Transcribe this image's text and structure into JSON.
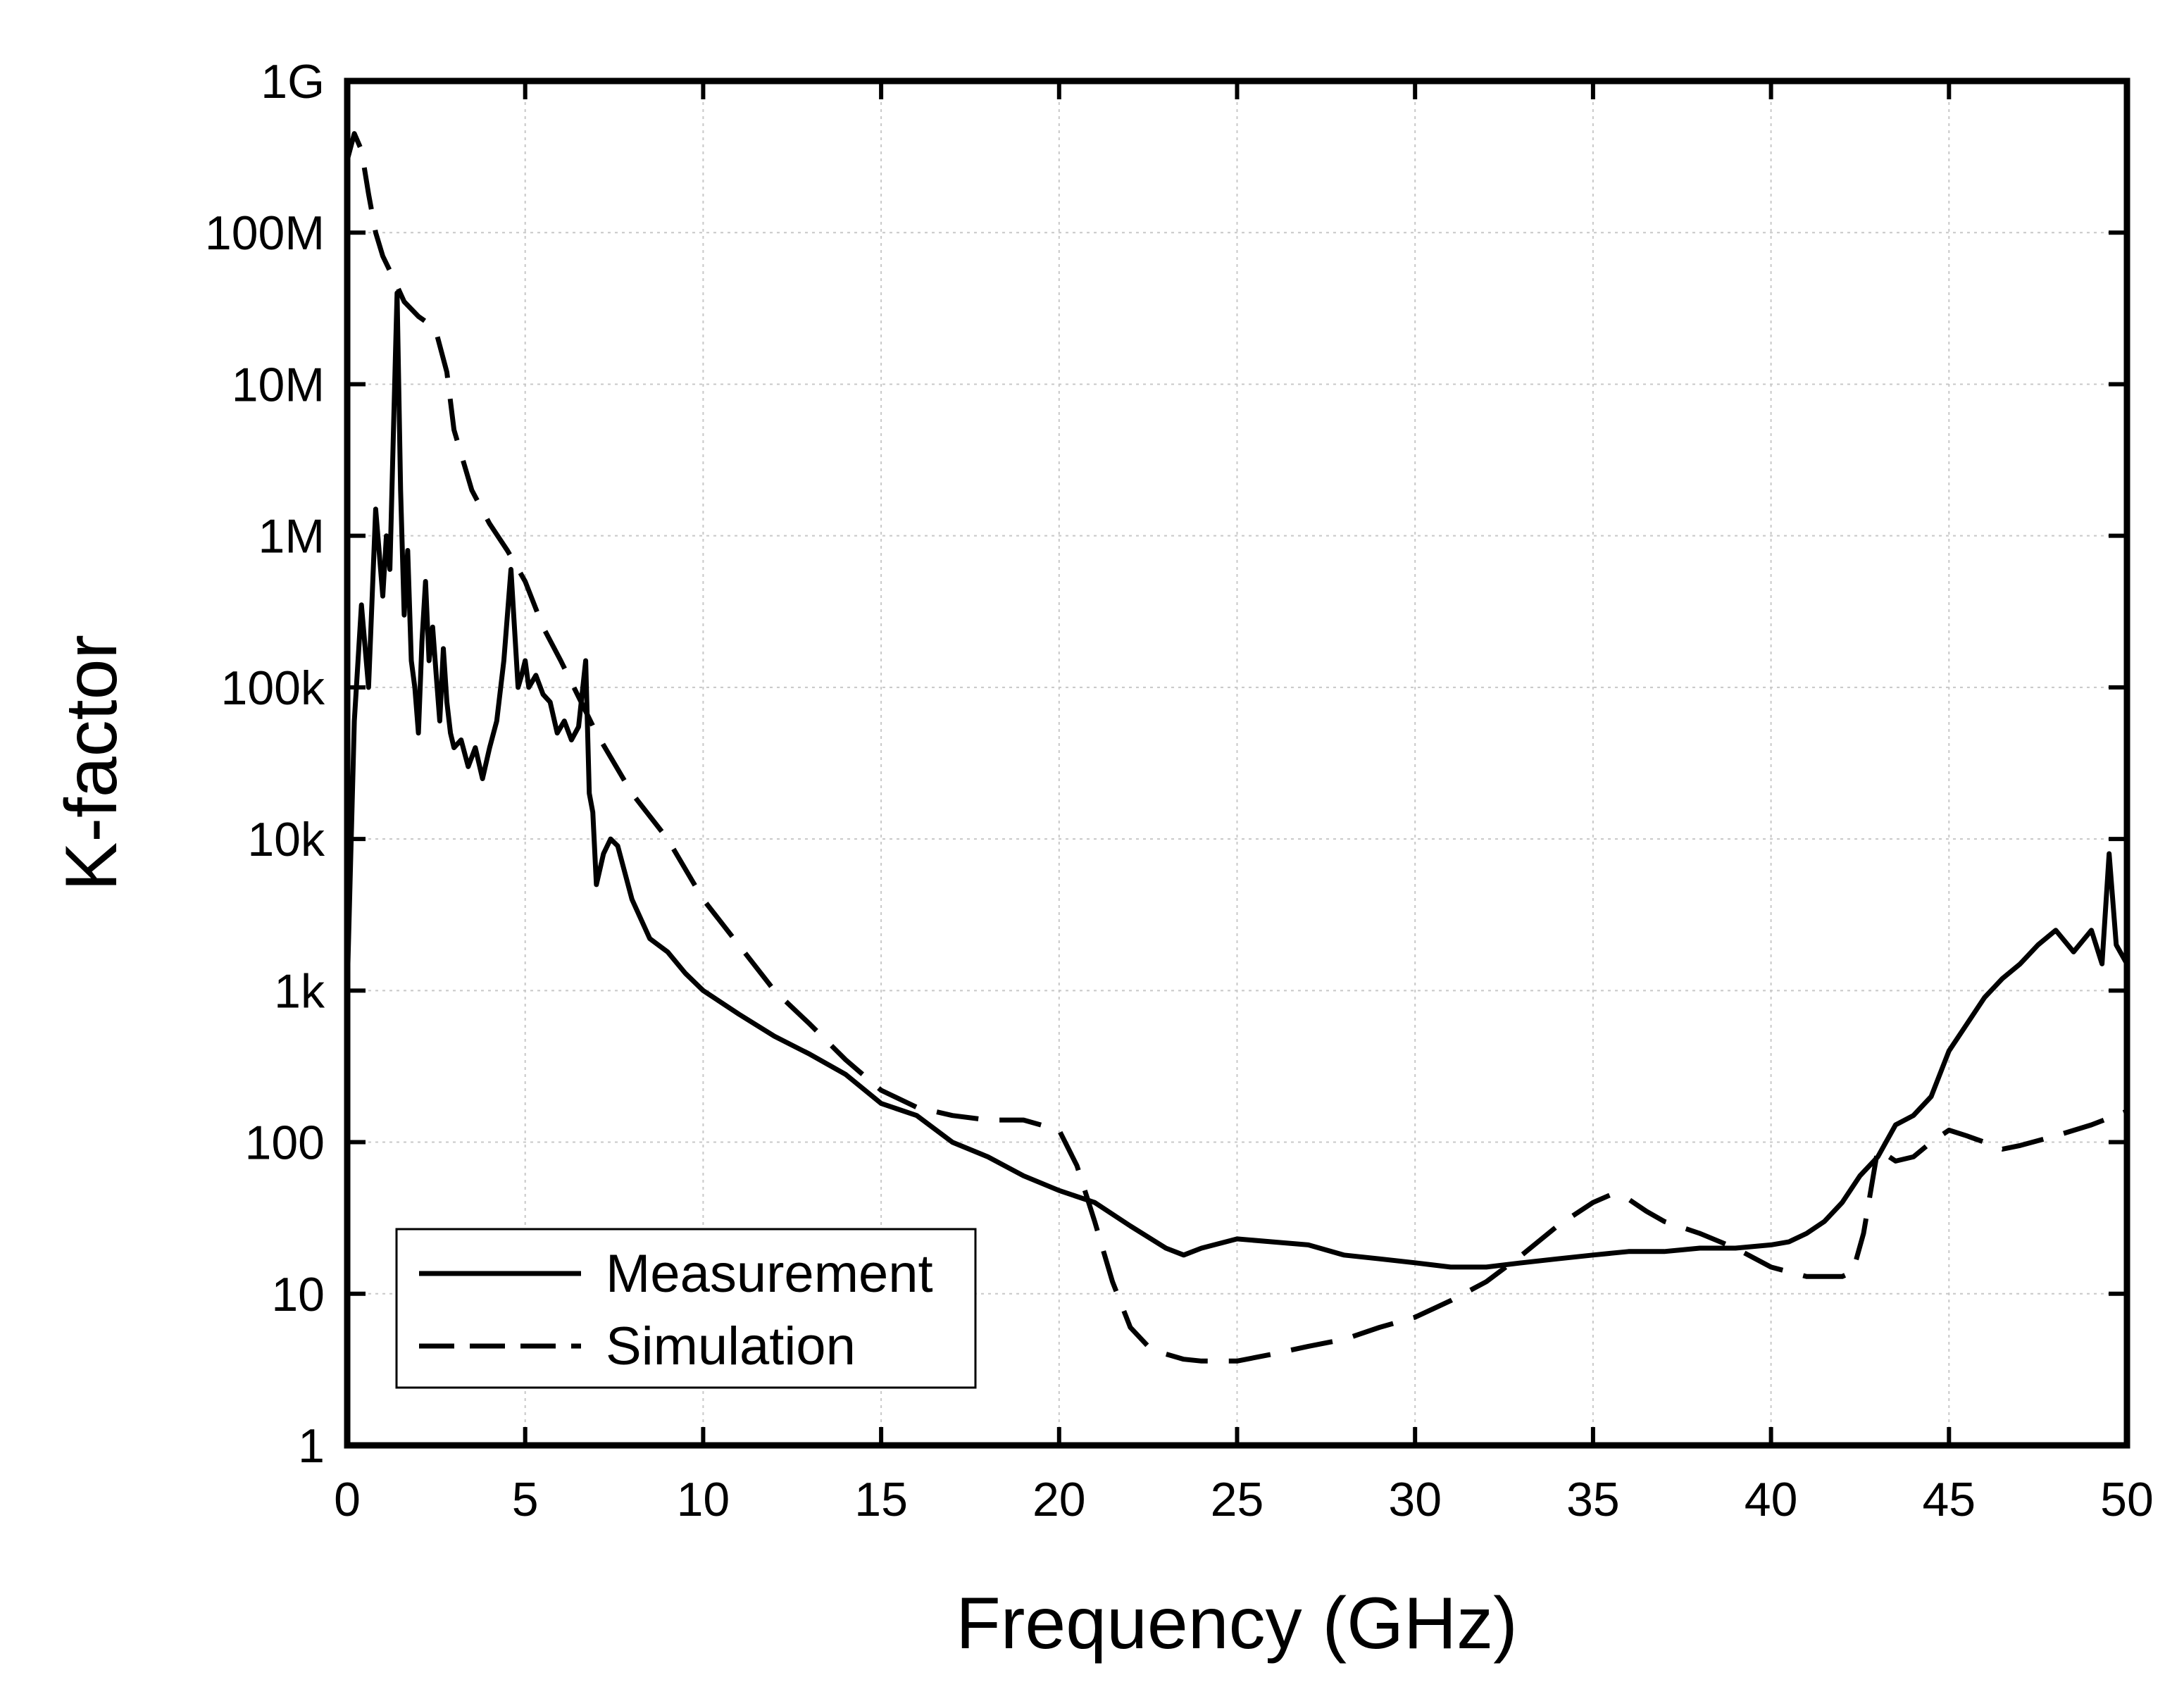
{
  "chart_data": {
    "type": "line",
    "title": "",
    "xlabel": "Frequency (GHz)",
    "ylabel": "K-factor",
    "xlim": [
      0,
      50
    ],
    "ylim": [
      1,
      1000000000
    ],
    "yscale": "log",
    "grid": true,
    "x_ticks": [
      0,
      5,
      10,
      15,
      20,
      25,
      30,
      35,
      40,
      45,
      50
    ],
    "x_tick_labels": [
      "0",
      "5",
      "10",
      "15",
      "20",
      "25",
      "30",
      "35",
      "40",
      "45",
      "50"
    ],
    "y_ticks": [
      1,
      10,
      100,
      1000,
      10000,
      100000,
      1000000,
      10000000,
      100000000,
      1000000000
    ],
    "y_tick_labels": [
      "1",
      "10",
      "100",
      "1k",
      "10k",
      "100k",
      "1M",
      "10M",
      "100M",
      "1G"
    ],
    "legend": {
      "position": "bottom-left",
      "entries": [
        "Measurement",
        "Simulation"
      ]
    },
    "series": [
      {
        "name": "Measurement",
        "style": "solid",
        "x": [
          0.0,
          0.2,
          0.4,
          0.6,
          0.8,
          1.0,
          1.1,
          1.2,
          1.3,
          1.4,
          1.5,
          1.6,
          1.7,
          1.8,
          1.9,
          2.0,
          2.1,
          2.2,
          2.3,
          2.4,
          2.5,
          2.6,
          2.7,
          2.8,
          2.9,
          3.0,
          3.2,
          3.4,
          3.6,
          3.8,
          4.0,
          4.2,
          4.4,
          4.6,
          4.8,
          4.9,
          5.0,
          5.1,
          5.3,
          5.5,
          5.7,
          5.9,
          6.1,
          6.3,
          6.5,
          6.7,
          6.8,
          6.9,
          7.0,
          7.2,
          7.4,
          7.6,
          7.8,
          8.0,
          8.5,
          9.0,
          9.5,
          10.0,
          11.0,
          12.0,
          13.0,
          14.0,
          15.0,
          16.0,
          17.0,
          18.0,
          19.0,
          20.0,
          21.0,
          22.0,
          23.0,
          23.5,
          24.0,
          25.0,
          26.0,
          27.0,
          28.0,
          29.0,
          30.0,
          31.0,
          32.0,
          33.0,
          34.0,
          35.0,
          36.0,
          37.0,
          38.0,
          39.0,
          40.0,
          40.5,
          41.0,
          41.5,
          42.0,
          42.5,
          43.0,
          43.5,
          44.0,
          44.5,
          45.0,
          45.5,
          46.0,
          46.5,
          47.0,
          47.5,
          48.0,
          48.5,
          49.0,
          49.3,
          49.5,
          49.7,
          50.0
        ],
        "values": [
          1000,
          60000,
          350000,
          100000,
          1500000,
          400000,
          1000000,
          600000,
          5000000,
          40000000,
          2000000,
          300000,
          800000,
          150000,
          100000,
          50000,
          200000,
          500000,
          150000,
          250000,
          120000,
          60000,
          180000,
          80000,
          50000,
          40000,
          45000,
          30000,
          40000,
          25000,
          40000,
          60000,
          150000,
          600000,
          100000,
          120000,
          150000,
          100000,
          120000,
          90000,
          80000,
          50000,
          60000,
          45000,
          55000,
          150000,
          20000,
          15000,
          5000,
          8000,
          10000,
          9000,
          6000,
          4000,
          2200,
          1800,
          1300,
          1000,
          700,
          500,
          380,
          280,
          180,
          150,
          100,
          80,
          60,
          48,
          40,
          28,
          20,
          18,
          20,
          23,
          22,
          21,
          18,
          17,
          16,
          15,
          15,
          16,
          17,
          18,
          19,
          19,
          20,
          20,
          21,
          22,
          25,
          30,
          40,
          60,
          80,
          130,
          150,
          200,
          400,
          600,
          900,
          1200,
          1500,
          2000,
          2500,
          1800,
          2500,
          1500,
          8000,
          2000,
          1500
        ]
      },
      {
        "name": "Simulation",
        "style": "dashed",
        "x": [
          0.0,
          0.2,
          0.4,
          0.6,
          0.8,
          1.0,
          1.3,
          1.6,
          2.0,
          2.3,
          2.5,
          2.8,
          3.0,
          3.5,
          4.0,
          4.5,
          5.0,
          5.5,
          6.0,
          7.0,
          8.0,
          9.0,
          10.0,
          11.0,
          12.0,
          13.0,
          14.0,
          15.0,
          16.0,
          17.0,
          18.0,
          19.0,
          20.0,
          20.5,
          21.0,
          21.5,
          22.0,
          22.5,
          23.0,
          23.5,
          24.0,
          25.0,
          26.0,
          27.0,
          28.0,
          29.0,
          30.0,
          31.0,
          32.0,
          33.0,
          34.0,
          35.0,
          35.5,
          36.0,
          36.5,
          37.0,
          38.0,
          39.0,
          40.0,
          41.0,
          42.0,
          42.3,
          42.6,
          43.0,
          43.5,
          44.0,
          44.5,
          45.0,
          45.5,
          46.0,
          46.5,
          47.0,
          48.0,
          49.0,
          50.0
        ],
        "values": [
          300000000,
          450000000,
          350000000,
          180000000,
          100000000,
          70000000,
          50000000,
          35000000,
          28000000,
          25000000,
          22000000,
          12000000,
          5000000,
          2000000,
          1200000,
          800000,
          500000,
          250000,
          150000,
          50000,
          20000,
          10000,
          4000,
          2000,
          1000,
          600,
          350,
          220,
          170,
          150,
          140,
          140,
          120,
          70,
          30,
          12,
          6,
          4.5,
          4,
          3.7,
          3.6,
          3.6,
          4,
          4.5,
          5,
          6,
          7,
          9,
          12,
          18,
          28,
          40,
          45,
          42,
          35,
          30,
          25,
          20,
          15,
          13,
          13,
          14,
          25,
          90,
          75,
          80,
          100,
          120,
          110,
          100,
          90,
          95,
          110,
          130,
          160
        ]
      }
    ]
  }
}
